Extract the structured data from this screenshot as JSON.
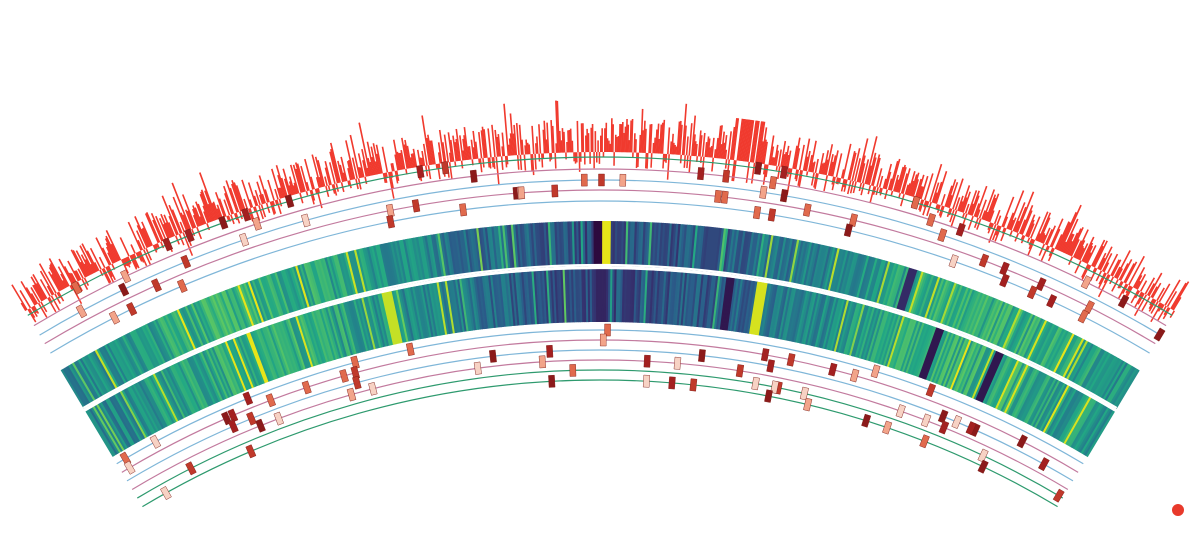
{
  "figure": {
    "kind": "circular-genome-plot-arc-detail",
    "text_labels": []
  },
  "colors": {
    "background": "#ffffff",
    "histogram": "#f03a2e",
    "track_green": "#2e9a6e",
    "track_pink": "#c27a9e",
    "track_blue": "#7fb6d8",
    "separator": "#ffffff",
    "heatmap_scale": [
      "#2d0a3e",
      "#35306e",
      "#2b5c8a",
      "#23818b",
      "#22a884",
      "#5ec962",
      "#b5de2b",
      "#e7e419"
    ],
    "feature_shades": [
      "#8b1a1a",
      "#a32020",
      "#c0392b",
      "#e06a4d",
      "#f2a48a",
      "#f7d2c4"
    ],
    "end_marker": "#e8392b"
  },
  "rings": {
    "histogram": {
      "type": "histogram",
      "direction": "outward"
    },
    "outer_feature_tracks": [
      {
        "name": "",
        "line_color": "green"
      },
      {
        "name": "",
        "line_color": "pink"
      },
      {
        "name": "",
        "line_color": "blue"
      },
      {
        "name": "",
        "line_color": "pink"
      },
      {
        "name": "",
        "line_color": "blue"
      }
    ],
    "heatmap_outer": {
      "type": "heatmap",
      "palette": "viridis",
      "landmarks": [
        {
          "pos": 0.497,
          "value": 0.0
        },
        {
          "pos": 0.505,
          "value": 1.0
        },
        {
          "pos": 0.6,
          "value": 0.22
        },
        {
          "pos": 0.78,
          "value": 0.12
        }
      ]
    },
    "heatmap_inner": {
      "type": "heatmap",
      "palette": "viridis",
      "landmarks": [
        {
          "pos": 0.5,
          "value": 0.1
        },
        {
          "pos": 0.62,
          "value": 0.05
        },
        {
          "pos": 0.65,
          "value": 0.95
        },
        {
          "pos": 0.82,
          "value": 0.05
        },
        {
          "pos": 0.88,
          "value": 0.05
        },
        {
          "pos": 0.3,
          "value": 0.9
        }
      ]
    },
    "inner_feature_tracks": [
      {
        "name": "",
        "line_color": "blue"
      },
      {
        "name": "",
        "line_color": "pink"
      },
      {
        "name": "",
        "line_color": "blue"
      },
      {
        "name": "",
        "line_color": "pink"
      },
      {
        "name": "",
        "line_color": "green"
      },
      {
        "name": "",
        "line_color": "green"
      }
    ]
  },
  "end_marker": {
    "shape": "dot",
    "color_ref": "end_marker"
  }
}
